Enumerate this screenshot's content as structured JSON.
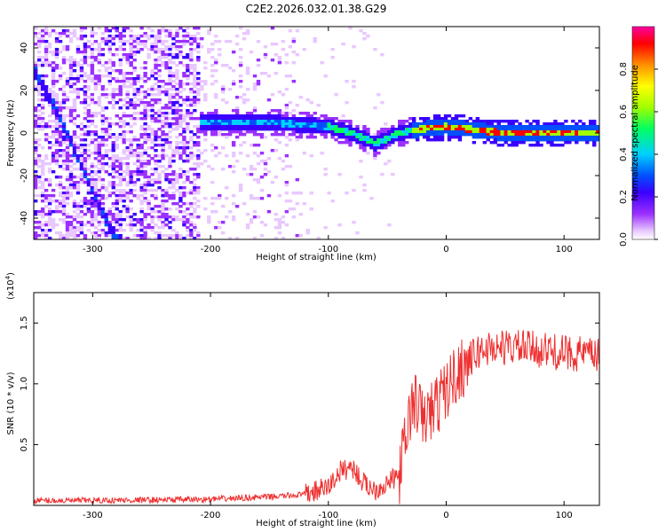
{
  "title": "C2E2.2026.032.01.38.G29",
  "chart_data": [
    {
      "type": "heatmap",
      "xlabel": "Height of straight line (km)",
      "ylabel": "Frequency (Hz)",
      "xlim": [
        -350,
        130
      ],
      "ylim": [
        -50,
        50
      ],
      "xticks": [
        -300,
        -200,
        -100,
        0,
        100
      ],
      "xtick_labels": [
        "-300",
        "-200",
        "-100",
        "0",
        "100"
      ],
      "yticks": [
        -40,
        -20,
        0,
        20,
        40
      ],
      "ytick_labels": [
        "-40",
        "-20",
        "0",
        "20",
        "40"
      ],
      "colorbar": {
        "label": "Normalized spectral amplitude",
        "range": [
          0,
          1
        ],
        "ticks": [
          0.0,
          0.2,
          0.4,
          0.6,
          0.8
        ],
        "tick_labels": [
          "0.0",
          "0.2",
          "0.4",
          "0.6",
          "0.8"
        ],
        "colors": [
          "#ffffff",
          "#e8c8ff",
          "#9b30ff",
          "#3a00ff",
          "#0050ff",
          "#00d0ff",
          "#00ff60",
          "#a0ff00",
          "#ffff00",
          "#ff9000",
          "#ff0000",
          "#ff00a0"
        ]
      },
      "features": [
        {
          "name": "direct-signal",
          "x": [
            -205,
            -150,
            -100,
            -80,
            -60,
            -40,
            -20,
            0,
            50,
            130
          ],
          "y": [
            5,
            5,
            3,
            0,
            -5,
            0,
            2,
            3,
            0,
            0
          ]
        },
        {
          "name": "descending-track",
          "x": [
            -350,
            -330,
            -310,
            -290,
            -280
          ],
          "y": [
            30,
            10,
            -15,
            -40,
            -50
          ]
        }
      ]
    },
    {
      "type": "line",
      "xlabel": "Height of straight line (km)",
      "ylabel": "SNR (10 * v/v)",
      "y_scale_label": "(x10",
      "y_scale_exponent": "4",
      "y_scale_suffix": ")",
      "xlim": [
        -350,
        130
      ],
      "ylim": [
        0,
        17500
      ],
      "xticks": [
        -300,
        -200,
        -100,
        0,
        100
      ],
      "xtick_labels": [
        "-300",
        "-200",
        "-100",
        "0",
        "100"
      ],
      "yticks": [
        5000,
        10000,
        15000
      ],
      "ytick_labels": [
        "0.5",
        "1.0",
        "1.5"
      ],
      "line_color": "#ee3030",
      "series": [
        {
          "name": "SNR",
          "x": [
            -350,
            -300,
            -250,
            -200,
            -150,
            -120,
            -100,
            -90,
            -80,
            -75,
            -70,
            -60,
            -50,
            -40,
            -35,
            -30,
            -25,
            -20,
            -10,
            0,
            10,
            20,
            30,
            40,
            60,
            80,
            100,
            115,
            130
          ],
          "y": [
            400,
            400,
            450,
            500,
            700,
            900,
            1500,
            2800,
            3200,
            2500,
            1800,
            1300,
            1800,
            2500,
            5000,
            8000,
            8500,
            7000,
            8000,
            9500,
            11000,
            12000,
            12800,
            13000,
            13000,
            12800,
            12500,
            12500,
            12200
          ]
        }
      ]
    }
  ]
}
